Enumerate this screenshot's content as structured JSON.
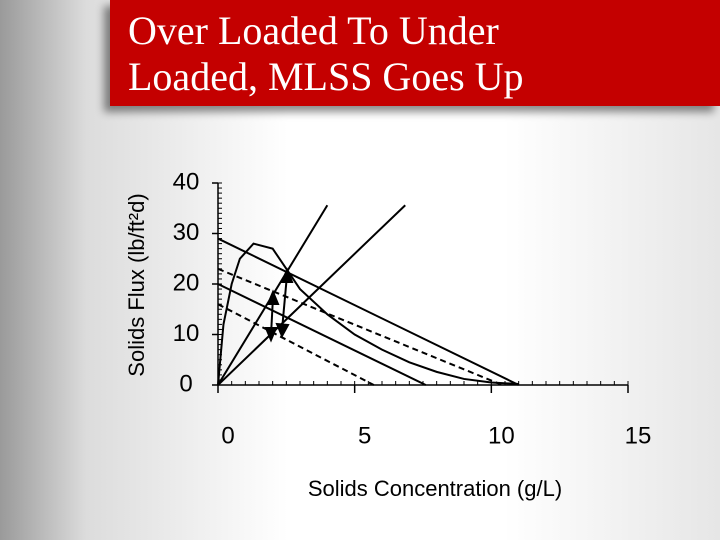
{
  "chart_data": {
    "type": "line",
    "title": "Over Loaded To Under Loaded, MLSS Goes Up",
    "x_label": "Solids Concentration  (g/L)",
    "y_label": "Solids Flux  (lb/ft²d)",
    "xlim": [
      0,
      15
    ],
    "ylim": [
      0,
      40
    ],
    "xticks": [
      0,
      5,
      10,
      15
    ],
    "yticks": [
      0,
      10,
      20,
      30,
      40
    ],
    "series": [
      {
        "color": "#000000",
        "dashed": false,
        "x": [
          0,
          0.2,
          0.5,
          0.8,
          1.3,
          2,
          2.5,
          3,
          4,
          5,
          6,
          7,
          8,
          9,
          10,
          11
        ],
        "values": [
          0,
          12,
          20,
          25,
          28,
          27,
          23,
          19,
          14,
          10,
          7,
          4.5,
          2.6,
          1.2,
          0.5,
          0.2
        ]
      },
      {
        "color": "#000000",
        "dashed": false,
        "x": [
          0,
          11
        ],
        "values": [
          29,
          0
        ]
      },
      {
        "color": "#000000",
        "dashed": false,
        "x": [
          0,
          7.6
        ],
        "values": [
          20,
          0
        ]
      },
      {
        "color": "#000000",
        "dashed": true,
        "x": [
          0,
          10.4
        ],
        "values": [
          23,
          0
        ]
      },
      {
        "color": "#000000",
        "dashed": true,
        "x": [
          0,
          5.7
        ],
        "values": [
          16,
          0
        ]
      },
      {
        "color": "#000000",
        "dashed": false,
        "x": [
          0,
          4
        ],
        "values": [
          0,
          35.6
        ]
      },
      {
        "color": "#000000",
        "dashed": false,
        "x": [
          0,
          6.85
        ],
        "values": [
          0,
          35.6
        ]
      }
    ]
  }
}
